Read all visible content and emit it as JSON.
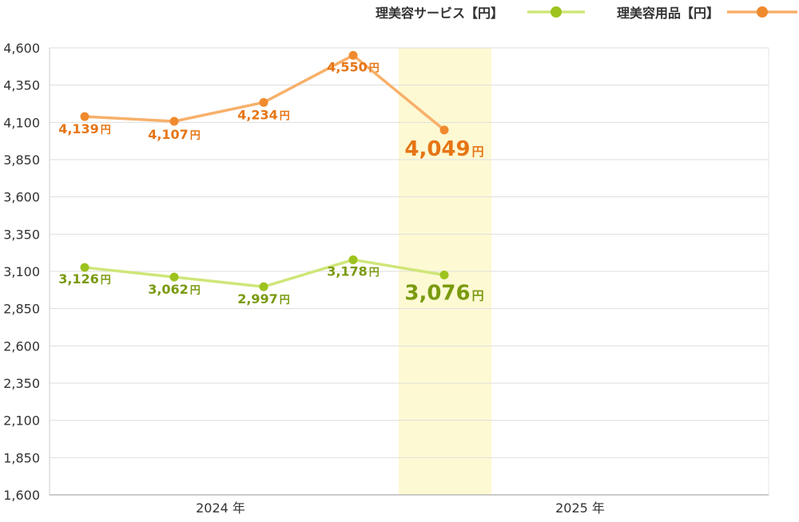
{
  "chart_data": {
    "type": "line",
    "unit": "円",
    "x_labels": [
      "2024 年",
      "2025 年"
    ],
    "ylim": [
      1600,
      4600
    ],
    "yticks": [
      "4,600",
      "4,350",
      "4,100",
      "3,850",
      "3,600",
      "3,350",
      "3,100",
      "2,850",
      "2,600",
      "2,350",
      "2,100",
      "1,850",
      "1,600"
    ],
    "grid": true,
    "legend_position": "top-right",
    "highlight_period": "latest",
    "series": [
      {
        "name": "理美容サービス【円】",
        "color": "#9dc31e",
        "line_color": "#cfe678",
        "label_color": "#7a9a10",
        "values": [
          3126,
          3062,
          2997,
          3178,
          3076
        ],
        "labels": [
          "3,126",
          "3,062",
          "2,997",
          "3,178",
          "3,076"
        ]
      },
      {
        "name": "理美容用品【円】",
        "color": "#f08a2e",
        "line_color": "#f7b06a",
        "label_color": "#e67516",
        "values": [
          4139,
          4107,
          4234,
          4550,
          4049
        ],
        "labels": [
          "4,139",
          "4,107",
          "4,234",
          "4,550",
          "4,049"
        ]
      }
    ]
  }
}
